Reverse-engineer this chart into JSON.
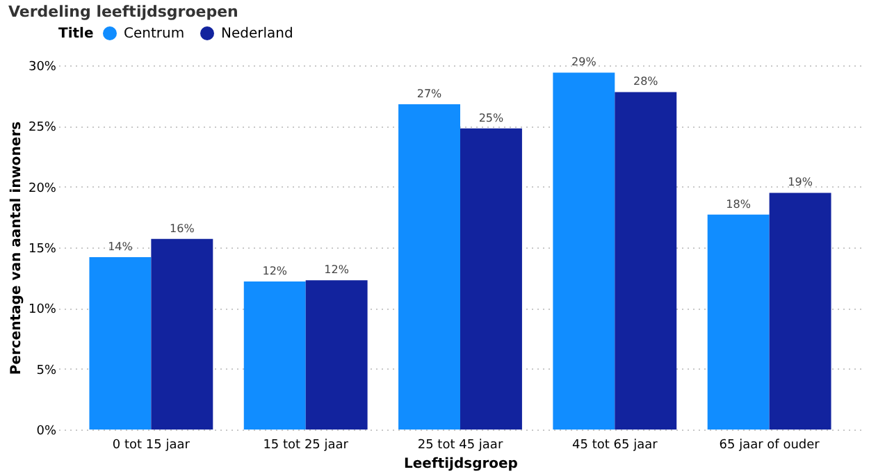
{
  "chart_data": {
    "type": "bar",
    "title": "Verdeling leeftijdsgroepen",
    "xlabel": "Leeftijdsgroep",
    "ylabel": "Percentage van aantal inwoners",
    "legend_title": "Title",
    "categories": [
      "0 tot 15 jaar",
      "15 tot 25 jaar",
      "25 tot 45 jaar",
      "45 tot 65 jaar",
      "65 jaar of ouder"
    ],
    "series": [
      {
        "name": "Centrum",
        "color": "#118dff",
        "values": [
          14.2,
          12.2,
          26.8,
          29.4,
          17.7
        ],
        "value_labels": [
          "14%",
          "12%",
          "27%",
          "29%",
          "18%"
        ]
      },
      {
        "name": "Nederland",
        "color": "#12239e",
        "values": [
          15.7,
          12.3,
          24.8,
          27.8,
          19.5
        ],
        "value_labels": [
          "16%",
          "12%",
          "25%",
          "28%",
          "19%"
        ]
      }
    ],
    "ylim": [
      0,
      30
    ],
    "yticks": [
      {
        "value": 0,
        "label": "0%"
      },
      {
        "value": 5,
        "label": "5%"
      },
      {
        "value": 10,
        "label": "10%"
      },
      {
        "value": 15,
        "label": "15%"
      },
      {
        "value": 20,
        "label": "20%"
      },
      {
        "value": 25,
        "label": "25%"
      },
      {
        "value": 30,
        "label": "30%"
      }
    ],
    "grid": "y",
    "legend": "top left"
  }
}
